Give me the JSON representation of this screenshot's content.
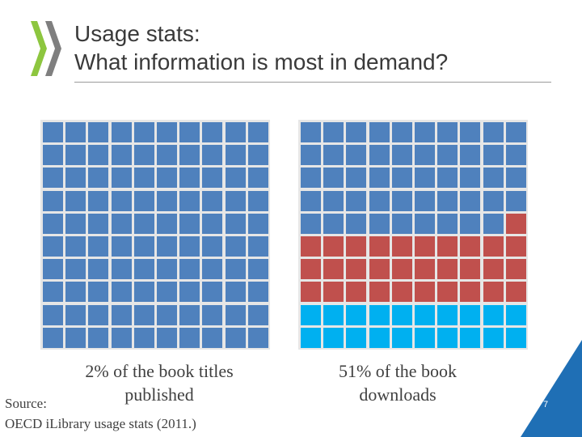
{
  "slide": {
    "title_line1": "Usage stats:",
    "title_line2": "What information is most in demand?",
    "source_label": "Source:",
    "source_text": "OECD iLibrary usage stats (2011.)",
    "page_number": "7"
  },
  "chart_data": [
    {
      "type": "waffle",
      "grid": {
        "rows": 10,
        "cols": 10
      },
      "caption": "2% of the book titles published",
      "fill_order": "bottom-to-top, right-to-left",
      "series": [
        {
          "name": "",
          "value": 98,
          "color": "#4f81bd"
        },
        {
          "name": "",
          "value": 2,
          "color": "#4f81bd"
        }
      ]
    },
    {
      "type": "waffle",
      "grid": {
        "rows": 10,
        "cols": 10
      },
      "caption": "51% of the book downloads",
      "fill_order": "bottom-to-top, right-to-left",
      "series": [
        {
          "name": "",
          "value": 49,
          "color": "#4f81bd"
        },
        {
          "name": "",
          "value": 31,
          "color": "#c0504d"
        },
        {
          "name": "",
          "value": 20,
          "color": "#00b0f0"
        }
      ]
    }
  ],
  "colors": {
    "logo_green": "#8dc63f",
    "logo_gray": "#7f7f7f",
    "corner_blue": "#1f6fb5",
    "text": "#404040"
  }
}
